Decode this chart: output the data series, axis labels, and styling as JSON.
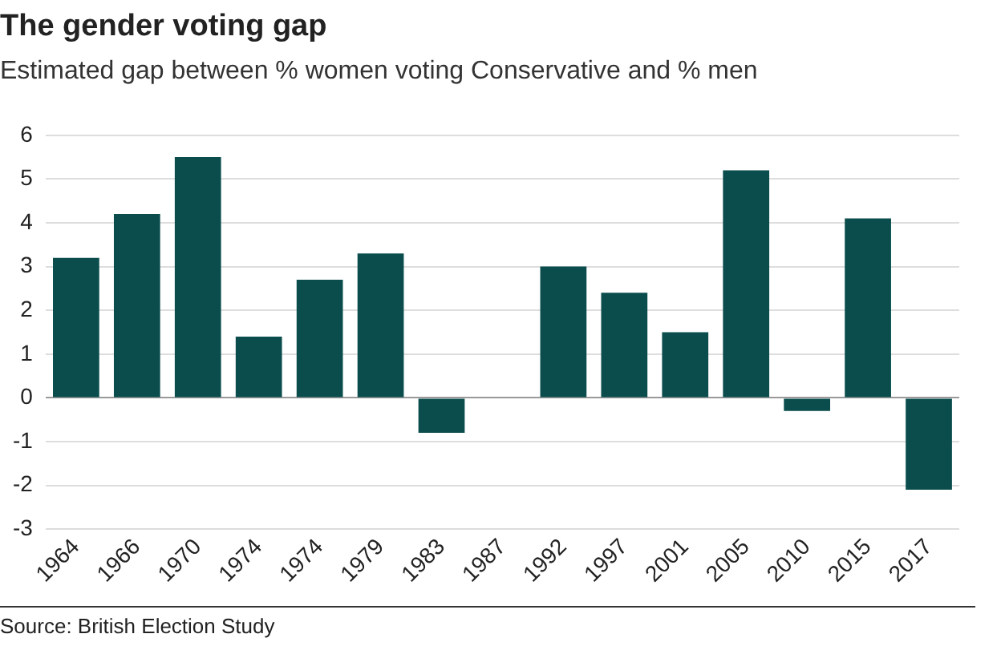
{
  "chart_data": {
    "type": "bar",
    "title": "The gender voting gap",
    "subtitle": "Estimated gap between % women voting Conservative and % men",
    "categories": [
      "1964",
      "1966",
      "1970",
      "1974",
      "1974",
      "1979",
      "1983",
      "1987",
      "1992",
      "1997",
      "2001",
      "2005",
      "2010",
      "2015",
      "2017"
    ],
    "values": [
      3.2,
      4.2,
      5.5,
      1.4,
      2.7,
      3.3,
      -0.8,
      0,
      3.0,
      2.4,
      1.5,
      5.2,
      -0.3,
      4.1,
      -2.1
    ],
    "color": "#0b4d4d",
    "ylim": [
      -3,
      6
    ],
    "yticks": [
      -3,
      -2,
      -1,
      0,
      1,
      2,
      3,
      4,
      5,
      6
    ],
    "grid": "y",
    "legend": false,
    "annotations": [
      "Source: British Election Study"
    ]
  }
}
